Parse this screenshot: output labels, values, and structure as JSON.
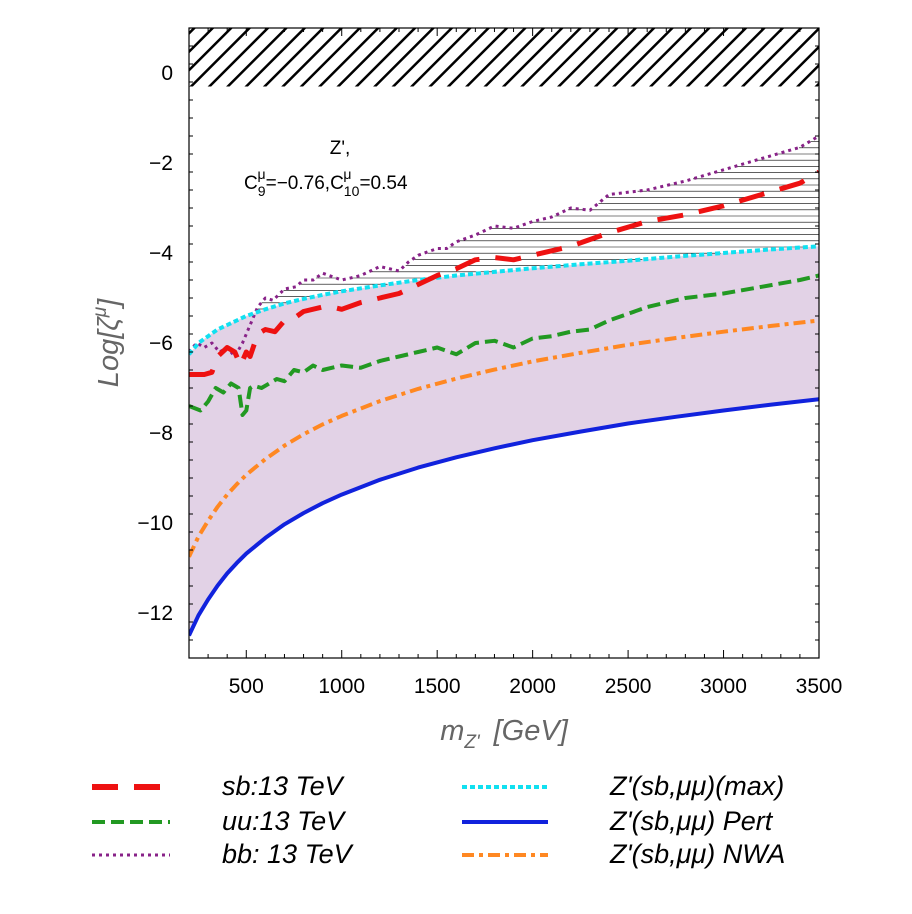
{
  "chart_data": {
    "type": "line",
    "title": "",
    "xlabel": "m",
    "xlabel_sub": "Z'",
    "xlabel_unit": "[GeV]",
    "ylabel": "Log[ζ",
    "ylabel_sup": "μ",
    "ylabel_close": "]",
    "xlim": [
      200,
      3500
    ],
    "ylim": [
      -13,
      1
    ],
    "xticks": [
      500,
      1000,
      1500,
      2000,
      2500,
      3000,
      3500
    ],
    "yticks": [
      -12,
      -10,
      -8,
      -6,
      -4,
      -2,
      0
    ],
    "annotation": {
      "line1": "Z',",
      "c9_base": "C",
      "c9_sub": "9",
      "c9_sup": "μ",
      "c9_val": "=−0.76,",
      "c10_base": "C",
      "c10_sub": "10",
      "c10_sup": "μ",
      "c10_val": "=0.54"
    },
    "excluded_band": [
      -0.3,
      1
    ],
    "hatched_region": "between Z'(sb,μμ)(max) and bb: 13 TeV",
    "shaded_region": "between Z'(sb,μμ) Pert and Z'(sb,μμ)(max)",
    "series": [
      {
        "name": "sb:13 TeV",
        "color": "#ee1111",
        "style": "long-dash",
        "x": [
          200,
          280,
          320,
          350,
          400,
          440,
          470,
          500,
          520,
          560,
          600,
          650,
          700,
          750,
          800,
          900,
          950,
          1000,
          1100,
          1200,
          1300,
          1400,
          1500,
          1600,
          1700,
          1800,
          1900,
          2000,
          2200,
          2400,
          2600,
          2800,
          3000,
          3200,
          3400,
          3500
        ],
        "y": [
          -6.7,
          -6.7,
          -6.65,
          -6.3,
          -6.1,
          -6.2,
          -6.5,
          -6.2,
          -6.3,
          -5.8,
          -5.7,
          -5.75,
          -5.5,
          -5.45,
          -5.3,
          -5.2,
          -5.2,
          -5.25,
          -5.1,
          -5.0,
          -4.9,
          -4.7,
          -4.5,
          -4.35,
          -4.15,
          -4.1,
          -4.15,
          -4.05,
          -3.85,
          -3.55,
          -3.3,
          -3.15,
          -2.95,
          -2.7,
          -2.45,
          -2.2
        ]
      },
      {
        "name": "uu:13 TeV",
        "color": "#229922",
        "style": "dashed",
        "x": [
          200,
          260,
          300,
          340,
          380,
          420,
          460,
          480,
          500,
          520,
          540,
          580,
          620,
          660,
          700,
          750,
          800,
          850,
          900,
          1000,
          1100,
          1200,
          1300,
          1400,
          1500,
          1600,
          1700,
          1800,
          1900,
          2000,
          2100,
          2200,
          2300,
          2400,
          2600,
          2800,
          3000,
          3200,
          3400,
          3500
        ],
        "y": [
          -7.4,
          -7.5,
          -7.3,
          -7.0,
          -7.1,
          -6.9,
          -7.0,
          -7.6,
          -7.5,
          -7.0,
          -6.95,
          -7.0,
          -6.9,
          -6.8,
          -6.85,
          -6.6,
          -6.65,
          -6.5,
          -6.6,
          -6.5,
          -6.55,
          -6.4,
          -6.3,
          -6.2,
          -6.1,
          -6.25,
          -6.0,
          -5.95,
          -6.1,
          -5.9,
          -5.85,
          -5.75,
          -5.7,
          -5.5,
          -5.2,
          -5.0,
          -4.9,
          -4.75,
          -4.6,
          -4.5
        ]
      },
      {
        "name": "bb: 13 TeV",
        "color": "#882288",
        "style": "dotted",
        "x": [
          200,
          240,
          280,
          320,
          360,
          400,
          440,
          480,
          520,
          560,
          600,
          640,
          700,
          760,
          800,
          850,
          900,
          1000,
          1050,
          1100,
          1200,
          1300,
          1350,
          1400,
          1500,
          1550,
          1600,
          1700,
          1800,
          1900,
          2000,
          2100,
          2200,
          2300,
          2400,
          2600,
          2800,
          3000,
          3200,
          3400,
          3500
        ],
        "y": [
          -6.2,
          -6.0,
          -6.1,
          -6.0,
          -6.2,
          -6.1,
          -6.3,
          -6.0,
          -5.6,
          -5.2,
          -5.0,
          -5.05,
          -4.8,
          -4.75,
          -4.6,
          -4.6,
          -4.45,
          -4.6,
          -4.55,
          -4.5,
          -4.3,
          -4.4,
          -4.2,
          -4.05,
          -3.9,
          -3.9,
          -3.75,
          -3.6,
          -3.4,
          -3.45,
          -3.3,
          -3.2,
          -3.0,
          -3.05,
          -2.7,
          -2.6,
          -2.4,
          -2.15,
          -1.9,
          -1.65,
          -1.4
        ]
      },
      {
        "name": "Z'(sb,μμ)(max)",
        "color": "#11e0f0",
        "style": "dotted-thick",
        "x": [
          200,
          250,
          300,
          350,
          400,
          450,
          500,
          600,
          700,
          800,
          900,
          1000,
          1200,
          1400,
          1600,
          1800,
          2000,
          2250,
          2500,
          2750,
          3000,
          3250,
          3500
        ],
        "y": [
          -6.25,
          -6.0,
          -5.85,
          -5.7,
          -5.6,
          -5.5,
          -5.4,
          -5.25,
          -5.12,
          -5.02,
          -4.93,
          -4.85,
          -4.72,
          -4.6,
          -4.5,
          -4.42,
          -4.34,
          -4.25,
          -4.17,
          -4.08,
          -4.0,
          -3.92,
          -3.85
        ]
      },
      {
        "name": "Z'(sb,μμ) Pert",
        "color": "#1122dd",
        "style": "solid",
        "x": [
          200,
          250,
          300,
          350,
          400,
          450,
          500,
          600,
          700,
          800,
          900,
          1000,
          1200,
          1400,
          1600,
          1800,
          2000,
          2250,
          2500,
          2750,
          3000,
          3250,
          3500
        ],
        "y": [
          -12.5,
          -12.05,
          -11.7,
          -11.39,
          -11.12,
          -10.89,
          -10.68,
          -10.33,
          -10.03,
          -9.78,
          -9.56,
          -9.37,
          -9.04,
          -8.77,
          -8.54,
          -8.34,
          -8.16,
          -7.97,
          -7.79,
          -7.64,
          -7.5,
          -7.37,
          -7.25
        ]
      },
      {
        "name": "Z'(sb,μμ) NWA",
        "color": "#ff8822",
        "style": "dash-dot",
        "x": [
          200,
          250,
          300,
          350,
          400,
          450,
          500,
          600,
          700,
          800,
          900,
          1000,
          1200,
          1400,
          1600,
          1800,
          2000,
          2250,
          2500,
          2750,
          3000,
          3250,
          3500
        ],
        "y": [
          -10.75,
          -10.3,
          -9.95,
          -9.64,
          -9.37,
          -9.14,
          -8.93,
          -8.58,
          -8.28,
          -8.03,
          -7.81,
          -7.62,
          -7.29,
          -7.02,
          -6.79,
          -6.59,
          -6.41,
          -6.22,
          -6.04,
          -5.89,
          -5.75,
          -5.62,
          -5.5
        ]
      }
    ],
    "legend": {
      "placement": "bottom",
      "left": [
        "sb:13 TeV",
        "uu:13 TeV",
        "bb: 13 TeV"
      ],
      "right": [
        "Z'(sb,μμ)(max)",
        "Z'(sb,μμ) Pert",
        "Z'(sb,μμ) NWA"
      ]
    }
  },
  "colors": {
    "shaded_fill": "#e2d2e6",
    "hatch": "#000000"
  }
}
